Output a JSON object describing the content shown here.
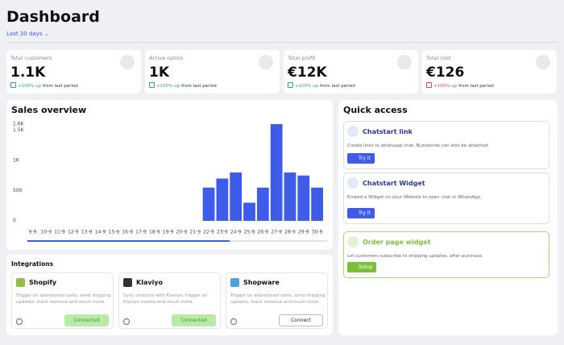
{
  "header": {
    "title": "Dashboard",
    "range": "Last 30 days"
  },
  "stats": [
    {
      "label": "Total customers",
      "value": "1.1K",
      "change": "+100% up",
      "suffix": "from last period"
    },
    {
      "label": "Active optins",
      "value": "1K",
      "change": "+100% up",
      "suffix": "from last period"
    },
    {
      "label": "Total profit",
      "value": "€12K",
      "change": "+100% up",
      "suffix": "from last period"
    },
    {
      "label": "Total cost",
      "value": "€126",
      "change": "+100% up",
      "suffix": "from last period"
    }
  ],
  "chart_data": {
    "type": "bar",
    "title": "Sales overview",
    "color": "#3f5ce8",
    "categories": [
      "9-9",
      "10-9",
      "11-9",
      "12-9",
      "13-9",
      "14-9",
      "15-9",
      "16-9",
      "17-9",
      "18-9",
      "19-9",
      "20-9",
      "21-9",
      "22-9",
      "23-9",
      "24-9",
      "25-9",
      "26-9",
      "27-9",
      "28-9",
      "29-9",
      "30-9"
    ],
    "values": [
      0,
      0,
      0,
      0,
      0,
      0,
      0,
      0,
      0,
      0,
      0,
      0,
      0,
      550,
      700,
      800,
      300,
      550,
      1600,
      800,
      750,
      550
    ],
    "ylim": [
      0,
      1600
    ],
    "yticks": [
      0,
      500,
      {
        "value": 1000,
        "label": "1K"
      },
      {
        "value": 1500,
        "label": "1.5K"
      },
      {
        "value": 1600,
        "label": "1.6K"
      }
    ]
  },
  "integrations": {
    "title": "Integrations",
    "items": [
      {
        "name": "Shopify",
        "description": "Trigger on abandoned carts, send shipping updates, track revenue and much more.",
        "button": "Connected"
      },
      {
        "name": "Klaviyo",
        "description": "Sync contacts with Klaviyo, trigger on Klaviyo events and much more.",
        "button": "Connected"
      },
      {
        "name": "Shopware",
        "description": "Trigger on abandoned carts, send shipping updates, track revenue and much more.",
        "button": "Connect"
      }
    ]
  },
  "quick_access": {
    "title": "Quick access",
    "items": [
      {
        "title": "Chatstart link",
        "description": "Create links to whatsapp chat. Buzzwords can also be attached.",
        "button": "Try it"
      },
      {
        "title": "Chatstart Widget",
        "description": "Embed a Widget on your Website to open chat in WhatsApp.",
        "button": "Try it"
      },
      {
        "title": "Order page widget",
        "description": "Let customers subscribe to shipping updates, after purchase.",
        "button": "Setup"
      }
    ]
  }
}
